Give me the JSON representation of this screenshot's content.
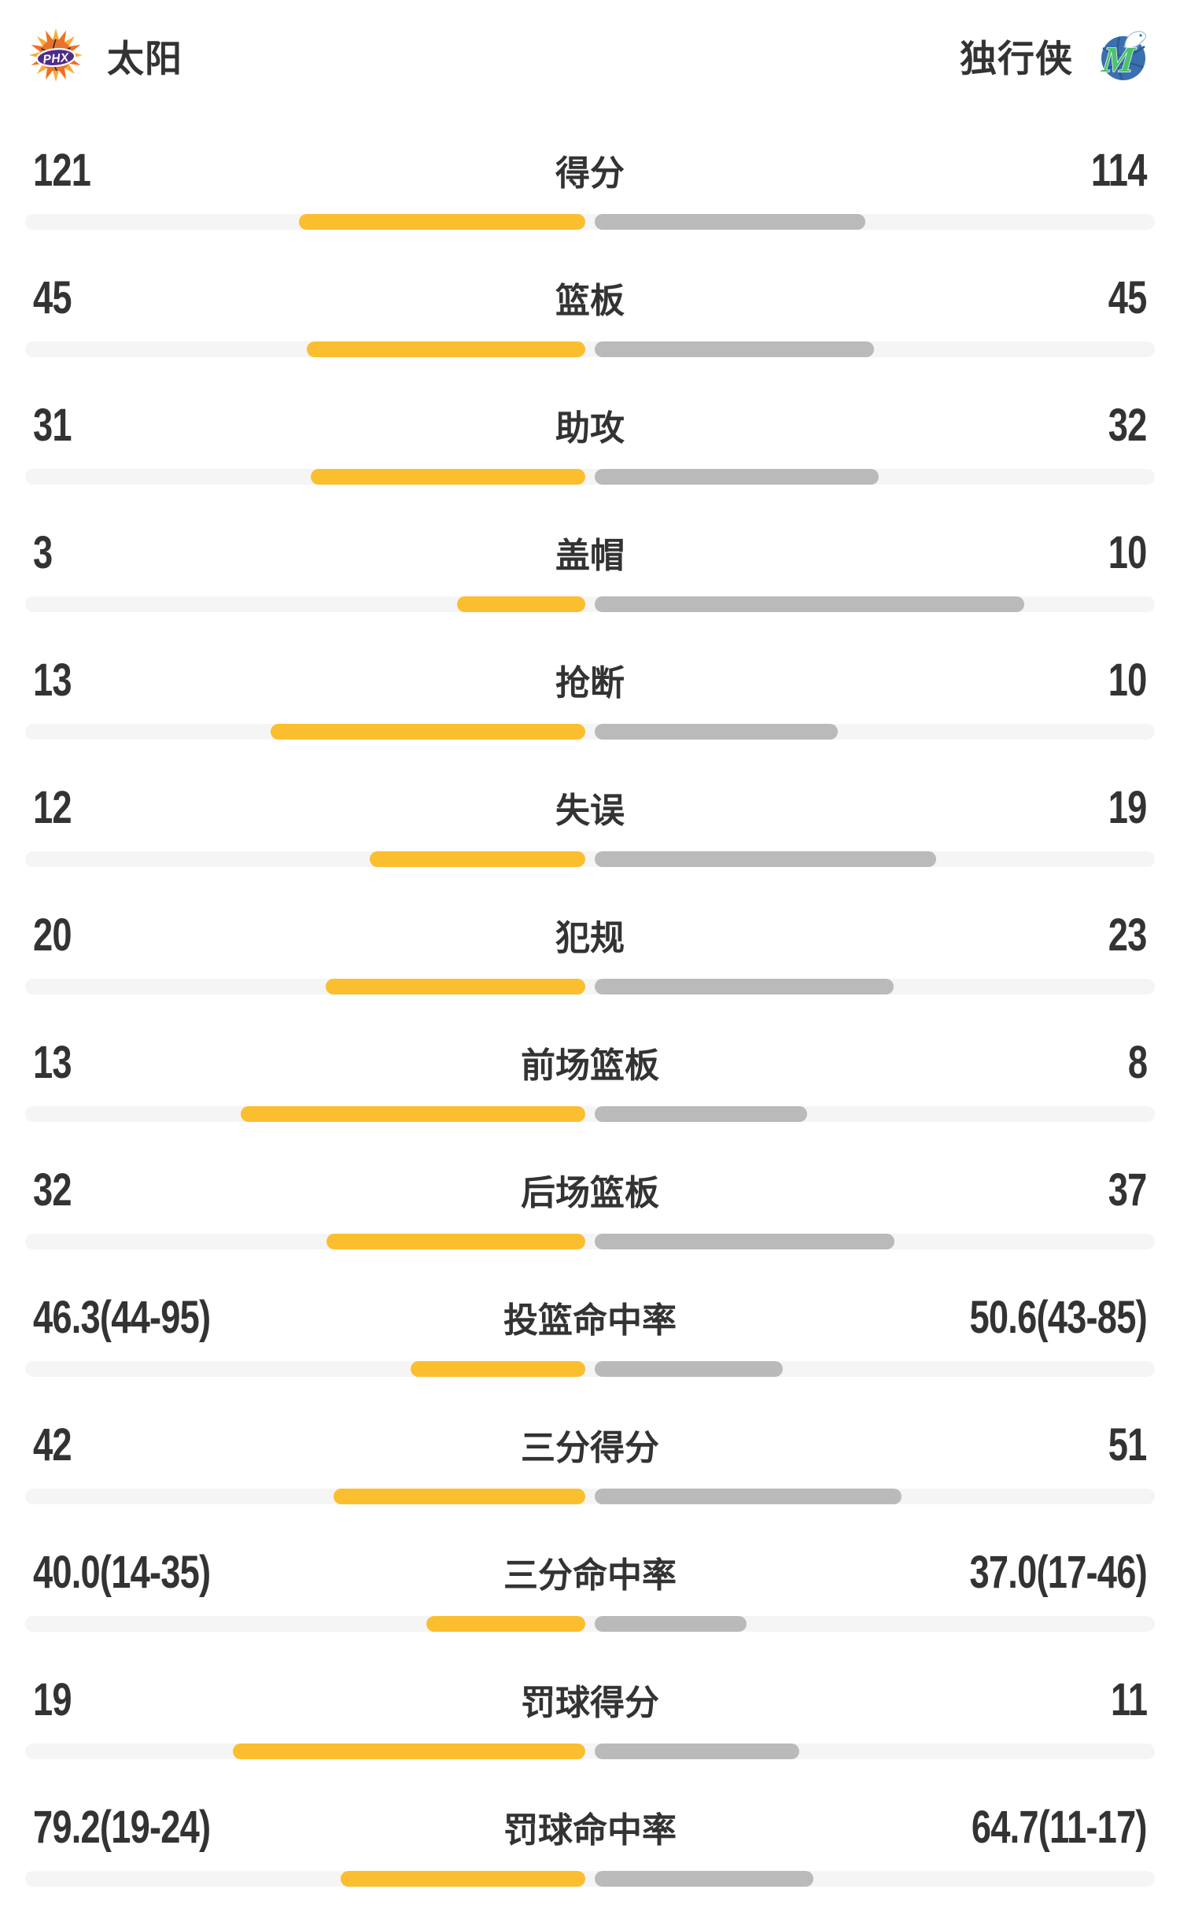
{
  "header": {
    "home_team": {
      "name": "太阳",
      "logo_icon": "suns-logo"
    },
    "away_team": {
      "name": "独行侠",
      "logo_icon": "mavericks-logo"
    }
  },
  "colors": {
    "home_bar": "#FBBE2F",
    "away_bar": "#BABABA",
    "bar_track": "#F5F5F6",
    "text": "#333333",
    "background": "#FFFFFF",
    "suns_purple": "#4F2C86",
    "suns_orange": "#F6921E",
    "mavs_blue": "#3A6FB0",
    "mavs_green": "#4CC26B"
  },
  "chart_data": {
    "type": "bar",
    "orientation": "horizontal-mirrored-from-center",
    "series": [
      "太阳",
      "独行侠"
    ],
    "rows": [
      {
        "label": "得分",
        "home": "121",
        "away": "114",
        "home_value": 121,
        "away_value": 114,
        "home_bar_pct": 25.4,
        "away_bar_pct": 23.9
      },
      {
        "label": "篮板",
        "home": "45",
        "away": "45",
        "home_value": 45,
        "away_value": 45,
        "home_bar_pct": 24.7,
        "away_bar_pct": 24.7
      },
      {
        "label": "助攻",
        "home": "31",
        "away": "32",
        "home_value": 31,
        "away_value": 32,
        "home_bar_pct": 24.3,
        "away_bar_pct": 25.1
      },
      {
        "label": "盖帽",
        "home": "3",
        "away": "10",
        "home_value": 3,
        "away_value": 10,
        "home_bar_pct": 11.4,
        "away_bar_pct": 38.0
      },
      {
        "label": "抢断",
        "home": "13",
        "away": "10",
        "home_value": 13,
        "away_value": 10,
        "home_bar_pct": 27.9,
        "away_bar_pct": 21.5
      },
      {
        "label": "失误",
        "home": "12",
        "away": "19",
        "home_value": 12,
        "away_value": 19,
        "home_bar_pct": 19.1,
        "away_bar_pct": 30.2
      },
      {
        "label": "犯规",
        "home": "20",
        "away": "23",
        "home_value": 20,
        "away_value": 23,
        "home_bar_pct": 23.0,
        "away_bar_pct": 26.4
      },
      {
        "label": "前场篮板",
        "home": "13",
        "away": "8",
        "home_value": 13,
        "away_value": 8,
        "home_bar_pct": 30.5,
        "away_bar_pct": 18.8
      },
      {
        "label": "后场篮板",
        "home": "32",
        "away": "37",
        "home_value": 32,
        "away_value": 37,
        "home_bar_pct": 22.9,
        "away_bar_pct": 26.5
      },
      {
        "label": "投篮命中率",
        "home": "46.3(44-95)",
        "away": "50.6(43-85)",
        "home_value": 46.3,
        "away_value": 50.6,
        "home_bar_pct": 15.5,
        "away_bar_pct": 16.6
      },
      {
        "label": "三分得分",
        "home": "42",
        "away": "51",
        "home_value": 42,
        "away_value": 51,
        "home_bar_pct": 22.3,
        "away_bar_pct": 27.1
      },
      {
        "label": "三分命中率",
        "home": "40.0(14-35)",
        "away": "37.0(17-46)",
        "home_value": 40.0,
        "away_value": 37.0,
        "home_bar_pct": 14.1,
        "away_bar_pct": 13.4
      },
      {
        "label": "罚球得分",
        "home": "19",
        "away": "11",
        "home_value": 19,
        "away_value": 11,
        "home_bar_pct": 31.2,
        "away_bar_pct": 18.1
      },
      {
        "label": "罚球命中率",
        "home": "79.2(19-24)",
        "away": "64.7(11-17)",
        "home_value": 79.2,
        "away_value": 64.7,
        "home_bar_pct": 21.7,
        "away_bar_pct": 19.3
      }
    ]
  }
}
